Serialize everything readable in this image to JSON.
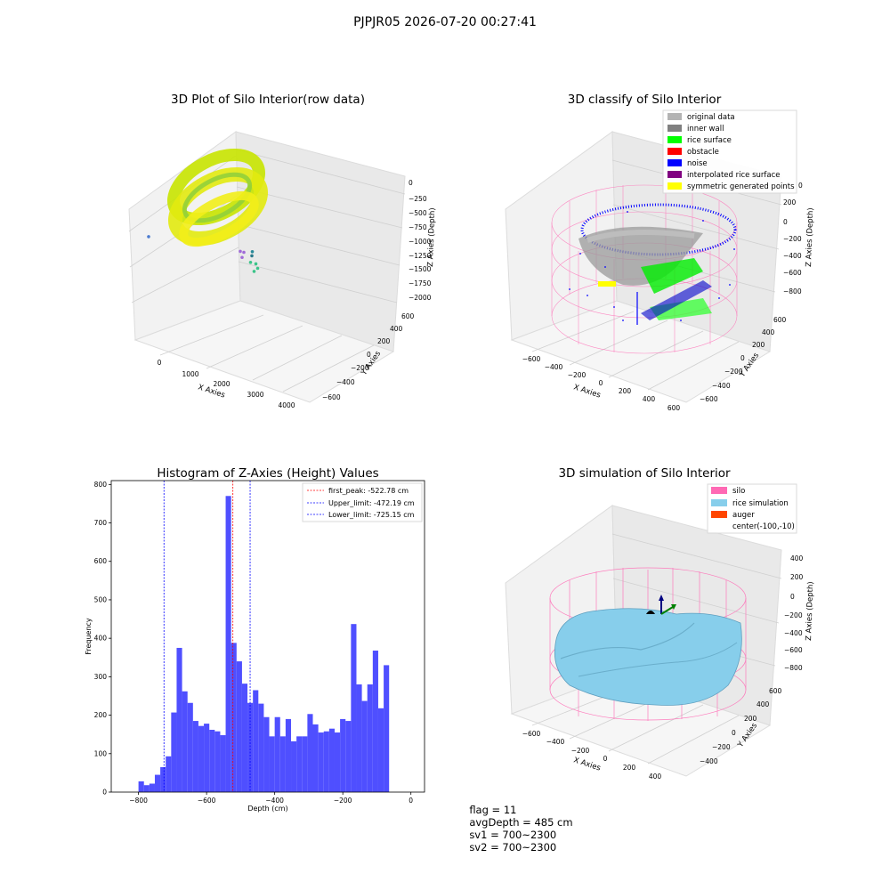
{
  "figure": {
    "title": "PJPJR05 2026-07-20 00:27:41"
  },
  "status_line": {
    "flag": "flag = 11",
    "avg_depth": "avgDepth = 485 cm",
    "sv1": "sv1 = 700~2300",
    "sv2": "sv2 = 700~2300"
  },
  "colors": {
    "histogram_bar": "#4f4fff",
    "first_peak_line": "#ff0000",
    "limit_lines": "#0000ff",
    "original_data": "#b3b3b3",
    "inner_wall": "#808080",
    "rice_surface": "#00ff00",
    "obstacle": "#ff0000",
    "noise": "#0000ff",
    "interpolated_rice_surface": "#800080",
    "symmetric_generated_points": "#ffff00",
    "silo": "#ff69b4",
    "rice_simulation": "#87ceeb",
    "auger": "#ff4500"
  },
  "chart_data": [
    {
      "type": "scatter",
      "title": "3D Plot of Silo Interior(row data)",
      "xlabel": "X Axies",
      "ylabel": "Y Axies",
      "zlabel": "Z Axies (Depth)",
      "x_ticks": [
        "0",
        "1000",
        "2000",
        "3000",
        "4000"
      ],
      "y_ticks": [
        "−600",
        "−400",
        "−200",
        "0",
        "200",
        "400",
        "600"
      ],
      "z_ticks": [
        "0",
        "−250",
        "−500",
        "−750",
        "−1000",
        "−1250",
        "−1500",
        "−1750",
        "−2000"
      ],
      "outlier_points": [
        {
          "x": 2500,
          "y": 200,
          "z": -1250
        },
        {
          "x": 2600,
          "y": 150,
          "z": -1350
        },
        {
          "x": 2700,
          "y": 100,
          "z": -1300
        },
        {
          "x": 2900,
          "y": 0,
          "z": -1500
        },
        {
          "x": 3000,
          "y": -100,
          "z": -1700
        },
        {
          "x": 3100,
          "y": -150,
          "z": -1680
        },
        {
          "x": 3200,
          "y": -200,
          "z": -1800
        },
        {
          "x": 1200,
          "y": -500,
          "z": -1900
        },
        {
          "x": 3900,
          "y": -300,
          "z": -1950
        },
        {
          "x": 4200,
          "y": -400,
          "z": -2000
        }
      ]
    },
    {
      "type": "scatter",
      "title": "3D classify of Silo Interior",
      "xlabel": "X Axies",
      "ylabel": "Y Axies",
      "zlabel": "Z Axies (Depth)",
      "x_ticks": [
        "−600",
        "−400",
        "−200",
        "0",
        "200",
        "400",
        "600"
      ],
      "y_ticks": [
        "−600",
        "−400",
        "−200",
        "0",
        "200",
        "400",
        "600"
      ],
      "z_ticks": [
        "200",
        "0",
        "−200",
        "−400",
        "−600",
        "−800"
      ],
      "z_top_tick": "0",
      "legend_position": "top-right",
      "legend": [
        {
          "label": "original data",
          "color": "#b3b3b3"
        },
        {
          "label": "inner wall",
          "color": "#808080"
        },
        {
          "label": "rice surface",
          "color": "#00ff00"
        },
        {
          "label": "obstacle",
          "color": "#ff0000"
        },
        {
          "label": "noise",
          "color": "#0000ff"
        },
        {
          "label": "interpolated rice surface",
          "color": "#800080"
        },
        {
          "label": "symmetric generated points",
          "color": "#ffff00"
        }
      ]
    },
    {
      "type": "bar",
      "title": "Histogram of Z-Axies (Height) Values",
      "xlabel": "Depth (cm)",
      "ylabel": "Frequency",
      "xlim": [
        -880,
        40
      ],
      "ylim": [
        0,
        810
      ],
      "bin_start": -800,
      "bin_width": 16,
      "values": [
        28,
        18,
        22,
        45,
        65,
        93,
        207,
        375,
        262,
        232,
        185,
        172,
        178,
        162,
        158,
        148,
        770,
        388,
        340,
        282,
        232,
        265,
        230,
        195,
        145,
        195,
        145,
        190,
        132,
        145,
        145,
        203,
        176,
        155,
        158,
        165,
        155,
        190,
        185,
        437,
        280,
        237,
        280,
        368,
        218,
        330
      ],
      "x_ticks": [
        -800,
        -600,
        -400,
        -200,
        0
      ],
      "y_ticks": [
        0,
        100,
        200,
        300,
        400,
        500,
        600,
        700,
        800
      ],
      "lines": [
        {
          "label": "first_peak: -522.78 cm",
          "x": -522.78,
          "color": "#ff0000"
        },
        {
          "label": "Upper_limit: -472.19 cm",
          "x": -472.19,
          "color": "#0000ff"
        },
        {
          "label": "Lower_limit: -725.15 cm",
          "x": -725.15,
          "color": "#0000ff"
        }
      ],
      "legend_position": "top-right"
    },
    {
      "type": "scatter",
      "title": "3D simulation of Silo Interior",
      "xlabel": "X Axies",
      "ylabel": "Y Axies",
      "zlabel": "Z Axies (Depth)",
      "x_ticks": [
        "−600",
        "−400",
        "−200",
        "0",
        "200",
        "400"
      ],
      "y_ticks": [
        "−400",
        "−200",
        "0",
        "200",
        "400",
        "600"
      ],
      "z_ticks": [
        "400",
        "200",
        "0",
        "−200",
        "−400",
        "−600",
        "−800"
      ],
      "legend_position": "top-right",
      "legend": [
        {
          "label": "silo",
          "color": "#ff69b4"
        },
        {
          "label": "rice simulation",
          "color": "#87ceeb"
        },
        {
          "label": "auger",
          "color": "#ff4500"
        },
        {
          "label": "center(-100,-10)",
          "color": ""
        }
      ]
    }
  ]
}
